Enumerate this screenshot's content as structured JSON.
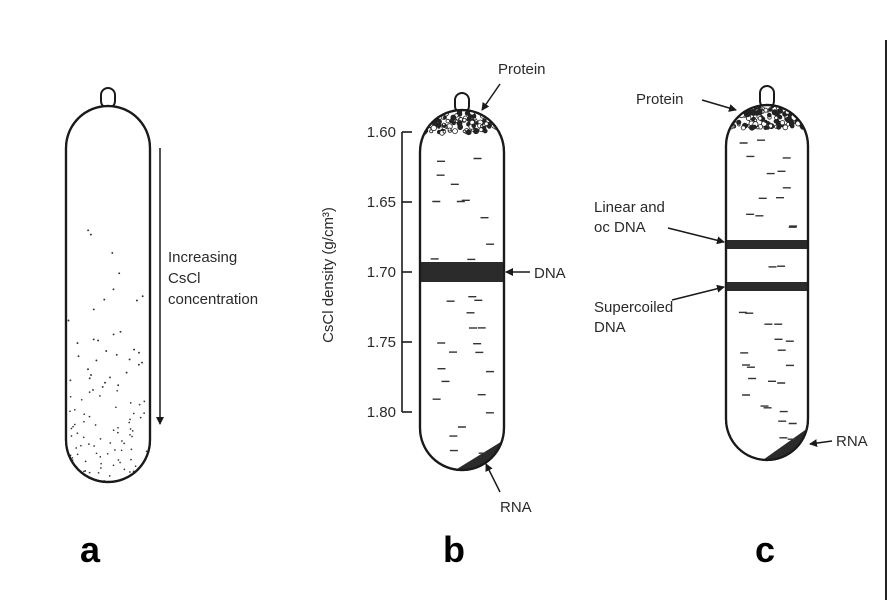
{
  "panels": {
    "a": {
      "letter": "a",
      "annotation_lines": [
        "Increasing",
        "CsCl",
        "concentration"
      ]
    },
    "b": {
      "letter": "b",
      "axis_label": "CsCl density (g/cm³)",
      "ticks": [
        "1.60",
        "1.65",
        "1.70",
        "1.75",
        "1.80"
      ],
      "labels": {
        "protein": "Protein",
        "dna": "DNA",
        "rna": "RNA"
      }
    },
    "c": {
      "letter": "c",
      "labels": {
        "protein": "Protein",
        "linear_line1": "Linear and",
        "linear_line2": "oc DNA",
        "supercoiled_line1": "Supercoiled",
        "supercoiled_line2": "DNA",
        "rna": "RNA"
      }
    }
  }
}
